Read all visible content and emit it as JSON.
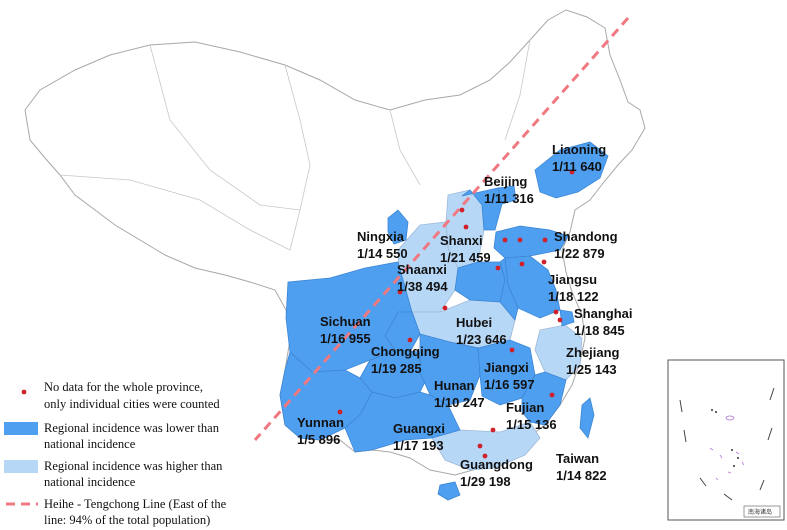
{
  "colors": {
    "lower": "#4f9ff0",
    "higher": "#b7d7f7",
    "nodata": "#ffffff",
    "border": "#b0b0b0",
    "dot": "#d0202a",
    "heihe_line": "#f07880"
  },
  "provinces": [
    {
      "id": "liaoning",
      "name": "Liaoning",
      "incidence": "1/11 640",
      "category": "lower"
    },
    {
      "id": "beijing",
      "name": "Beijing",
      "incidence": "1/11 316",
      "category": "lower"
    },
    {
      "id": "ningxia",
      "name": "Ningxia",
      "incidence": "1/14 550",
      "category": "lower"
    },
    {
      "id": "shanxi",
      "name": "Shanxi",
      "incidence": "1/21 459",
      "category": "higher"
    },
    {
      "id": "shandong",
      "name": "Shandong",
      "incidence": "1/22 879",
      "category": "lower"
    },
    {
      "id": "shaanxi",
      "name": "Shaanxi",
      "incidence": "1/38 494",
      "category": "higher"
    },
    {
      "id": "jiangsu",
      "name": "Jiangsu",
      "incidence": "1/18 122",
      "category": "lower"
    },
    {
      "id": "sichuan",
      "name": "Sichuan",
      "incidence": "1/16 955",
      "category": "lower"
    },
    {
      "id": "shanghai",
      "name": "Shanghai",
      "incidence": "1/18 845",
      "category": "lower"
    },
    {
      "id": "hubei",
      "name": "Hubei",
      "incidence": "1/23 646",
      "category": "higher"
    },
    {
      "id": "chongqing",
      "name": "Chongqing",
      "incidence": "1/19 285",
      "category": "lower"
    },
    {
      "id": "zhejiang",
      "name": "Zhejiang",
      "incidence": "1/25 143",
      "category": "higher"
    },
    {
      "id": "jiangxi",
      "name": "Jiangxi",
      "incidence": "1/16 597",
      "category": "lower"
    },
    {
      "id": "hunan",
      "name": "Hunan",
      "incidence": "1/10 247",
      "category": "lower"
    },
    {
      "id": "fujian",
      "name": "Fujian",
      "incidence": "1/15 136",
      "category": "lower"
    },
    {
      "id": "yunnan",
      "name": "Yunnan",
      "incidence": "1/5 896",
      "category": "lower"
    },
    {
      "id": "guangxi",
      "name": "Guangxi",
      "incidence": "1/17 193",
      "category": "lower"
    },
    {
      "id": "taiwan",
      "name": "Taiwan",
      "incidence": "1/14 822",
      "category": "lower"
    },
    {
      "id": "guangdong",
      "name": "Guangdong",
      "incidence": "1/29 198",
      "category": "higher"
    }
  ],
  "legend": {
    "dot_line1": "No data for the whole province,",
    "dot_line2": "only individual cities were counted",
    "lower_line1": "Regional incidence was lower than",
    "lower_line2": "national incidence",
    "higher_line1": "Regional incidence was higher than",
    "higher_line2": "national incidence",
    "line_line1": "Heihe - Tengchong Line (East of the",
    "line_line2": "line: 94% of the total population)"
  },
  "inset": {
    "caption": "南海诸岛"
  }
}
